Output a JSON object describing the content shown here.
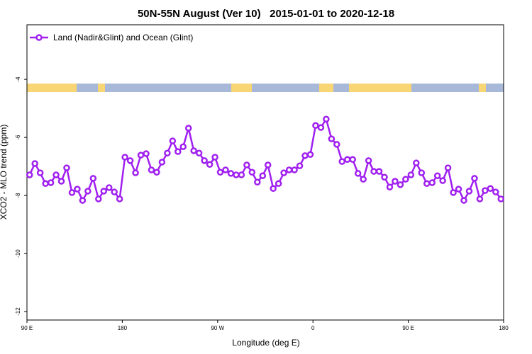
{
  "chart_data": {
    "type": "line",
    "title": "50N-55N August (Ver 10)   2015-01-01 to 2020-12-18",
    "xlabel": "Longitude (deg E)",
    "ylabel": "XCO2 - MLO trend (ppm)",
    "xlim": [
      90,
      540
    ],
    "ylim": [
      -12.29,
      -2.12
    ],
    "xticks": [
      {
        "value": 90,
        "label": "90 E"
      },
      {
        "value": 180,
        "label": "180"
      },
      {
        "value": 270,
        "label": "90 W"
      },
      {
        "value": 360,
        "label": "0"
      },
      {
        "value": 450,
        "label": "90 E"
      },
      {
        "value": 540,
        "label": "180"
      }
    ],
    "yticks": [
      -12,
      -10,
      -8,
      -6,
      -4
    ],
    "legend": "upper left",
    "x": [
      92.5,
      97.5,
      102.5,
      107.5,
      112.5,
      117.5,
      122.5,
      127.5,
      132.5,
      137.5,
      142.5,
      147.5,
      152.5,
      157.5,
      162.5,
      167.5,
      172.5,
      177.5,
      182.5,
      187.5,
      192.5,
      197.5,
      202.5,
      207.5,
      212.5,
      217.5,
      222.5,
      227.5,
      232.5,
      237.5,
      242.5,
      247.5,
      252.5,
      257.5,
      262.5,
      267.5,
      272.5,
      277.5,
      282.5,
      287.5,
      292.5,
      297.5,
      302.5,
      307.5,
      312.5,
      317.5,
      322.5,
      327.5,
      332.5,
      337.5,
      342.5,
      347.5,
      352.5,
      357.5,
      362.5,
      367.5,
      372.5,
      377.5,
      382.5,
      387.5,
      392.5,
      397.5,
      402.5,
      407.5,
      412.5,
      417.5,
      422.5,
      427.5,
      432.5,
      437.5,
      442.5,
      447.5,
      452.5,
      457.5,
      462.5,
      467.5,
      472.5,
      477.5,
      482.5,
      487.5,
      492.5,
      497.5,
      502.5,
      507.5,
      512.5,
      517.5,
      522.5,
      527.5,
      532.5,
      537.5
    ],
    "series": [
      {
        "name": "Land (Nadir&Glint) and Ocean (Glint)",
        "color": "#a020f0",
        "values": [
          -7.29,
          -6.9,
          -7.22,
          -7.59,
          -7.56,
          -7.29,
          -7.51,
          -7.05,
          -7.9,
          -7.78,
          -8.17,
          -7.85,
          -7.41,
          -8.12,
          -7.85,
          -7.73,
          -7.88,
          -8.12,
          -6.68,
          -6.8,
          -7.22,
          -6.61,
          -6.56,
          -7.12,
          -7.2,
          -6.85,
          -6.54,
          -6.12,
          -6.49,
          -6.32,
          -5.68,
          -6.46,
          -6.54,
          -6.8,
          -6.93,
          -6.68,
          -7.2,
          -7.12,
          -7.24,
          -7.29,
          -7.29,
          -6.95,
          -7.2,
          -7.54,
          -7.32,
          -6.95,
          -7.76,
          -7.59,
          -7.22,
          -7.12,
          -7.12,
          -6.98,
          -6.63,
          -6.59,
          -5.59,
          -5.66,
          -5.37,
          -6.05,
          -6.24,
          -6.83,
          -6.76,
          -6.76,
          -7.24,
          -7.44,
          -6.8,
          -7.17,
          -7.17,
          -7.37,
          -7.71,
          -7.51,
          -7.63,
          -7.44,
          -7.29,
          -6.88,
          -7.22,
          -7.59,
          -7.56,
          -7.32,
          -7.49,
          -7.05,
          -7.9,
          -7.78,
          -8.17,
          -7.85,
          -7.41,
          -8.12,
          -7.83,
          -7.76,
          -7.88,
          -8.12
        ]
      }
    ]
  }
}
